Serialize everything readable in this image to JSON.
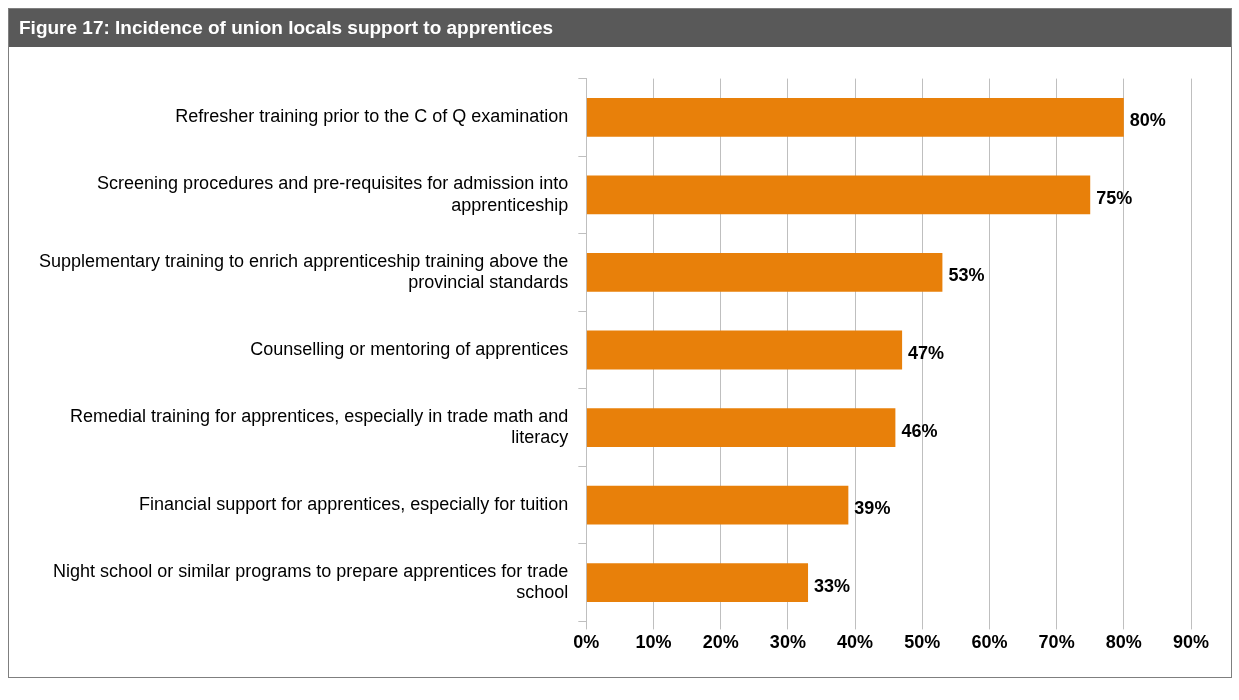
{
  "chart_data": {
    "type": "bar",
    "orientation": "horizontal",
    "title": "Figure 17: Incidence of union locals support to apprentices",
    "categories": [
      "Refresher training prior to the C of Q examination",
      "Screening procedures and pre-requisites for admission into apprenticeship",
      "Supplementary training to enrich apprenticeship training above the provincial standards",
      "Counselling or mentoring of apprentices",
      "Remedial training for apprentices, especially in trade math and literacy",
      "Financial support for apprentices, especially for tuition",
      "Night school or similar programs to prepare apprentices for trade school"
    ],
    "values": [
      80,
      75,
      53,
      47,
      46,
      39,
      33
    ],
    "value_labels": [
      "80%",
      "75%",
      "53%",
      "47%",
      "46%",
      "39%",
      "33%"
    ],
    "color": "#e8800a",
    "xlim": [
      0,
      90
    ],
    "xticks": [
      {
        "value": 0,
        "label": "0%"
      },
      {
        "value": 10,
        "label": "10%"
      },
      {
        "value": 20,
        "label": "20%"
      },
      {
        "value": 30,
        "label": "30%"
      },
      {
        "value": 40,
        "label": "40%"
      },
      {
        "value": 50,
        "label": "50%"
      },
      {
        "value": 60,
        "label": "60%"
      },
      {
        "value": 70,
        "label": "70%"
      },
      {
        "value": 80,
        "label": "80%"
      },
      {
        "value": 90,
        "label": "90%"
      }
    ],
    "grid": "x",
    "legend": false
  }
}
